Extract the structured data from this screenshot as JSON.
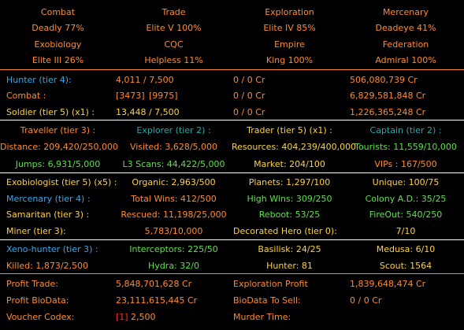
{
  "colors": {
    "orange": "#ff8a2e",
    "blue": "#3aa6e8",
    "cyan": "#2aa7a7",
    "yellow": "#ffd23f",
    "green": "#5ee04a",
    "red": "#ff2a2a",
    "sep": "#ff8a2e"
  },
  "ranks": {
    "combat_title": "Combat",
    "combat_value": "Deadly  77%",
    "trade_title": "Trade",
    "trade_value": "Elite V  100%",
    "exploration_title": "Exploration",
    "exploration_value": "Elite IV  85%",
    "mercenary_title": "Mercenary",
    "mercenary_value": "Deadeye  41%",
    "exobiology_title": "Exobiology",
    "exobiology_value": "Elite III  26%",
    "cqc_title": "CQC",
    "cqc_value": "Helpless  11%",
    "empire_title": "Empire",
    "empire_value": "King  100%",
    "federation_title": "Federation",
    "federation_value": "Admiral  100%"
  },
  "hunter": {
    "label": "Hunter (tier 4):",
    "progress": "4,011 / 7,500",
    "cr": "0 / 0 Cr",
    "total": "506,080,739 Cr"
  },
  "combat": {
    "label": "Combat :",
    "b1": "[3473]",
    "b2": "[9975]",
    "cr": "0 / 0 Cr",
    "total": "6,829,581,848 Cr"
  },
  "soldier": {
    "label": "Soldier (tier 5) (x1) :",
    "progress": "13,448 / 7,500",
    "cr": "0 / 0 Cr",
    "total": "1,226,365,248 Cr"
  },
  "traveller": {
    "header": "Traveller (tier 3) :",
    "distance": "Distance: 209,420/250,000",
    "jumps": "Jumps: 6,931/5,000"
  },
  "explorer": {
    "header": "Explorer (tier 2) :",
    "visited": "Visited: 3,628/5,000",
    "l3": "L3 Scans: 44,422/5,000"
  },
  "trader": {
    "header": "Trader (tier 5) (x1) :",
    "resources": "Resources: 404,239/400,000",
    "market": "Market: 204/100"
  },
  "captain": {
    "header": "Captain (tier 2) :",
    "tourists": "Tourists: 11,559/10,000",
    "vips": "VIPs : 167/500"
  },
  "exobiologist": {
    "label": "Exobiologist (tier 5) (x5) :",
    "organic": "Organic: 2,963/500",
    "planets": "Planets: 1,297/100",
    "unique": "Unique: 100/75"
  },
  "mercenary": {
    "label": "Mercenary (tier 4) :",
    "total_wins": "Total Wins: 412/500",
    "high_wins": "High Wins: 309/250",
    "colony": "Colony A.D.: 35/25"
  },
  "samaritan": {
    "label": "Samaritan (tier 3) :",
    "rescued": "Rescued: 11,198/25,000",
    "reboot": "Reboot: 53/25",
    "fireout": "FireOut: 540/250"
  },
  "miner": {
    "label": "Miner (tier 3):",
    "progress": "5,783/10,000",
    "hero": "Decorated Hero (tier 0):",
    "hero_progress": "7/10"
  },
  "xeno": {
    "label": "Xeno-hunter (tier 3) :",
    "interceptors": "Interceptors: 225/50",
    "basilisk": "Basilisk: 24/25",
    "medusa": "Medusa: 6/10",
    "killed": "Killed: 1,873/2,500",
    "hydra": "Hydra: 32/0",
    "hunter": "Hunter: 81",
    "scout": "Scout: 1564"
  },
  "profit": {
    "trade_label": "Profit Trade:",
    "trade_value": "5,848,701,628 Cr",
    "exploration_label": "Exploration Profit",
    "exploration_value": "1,839,648,474 Cr",
    "biodata_label": "Profit BioData:",
    "biodata_value": "23,111,615,445 Cr",
    "sell_label": "BioData To Sell:",
    "sell_value": "0 / 0 Cr",
    "voucher_label": "Voucher Codex:",
    "voucher_count": "[1]",
    "voucher_value": "2,500",
    "murder_label": "Murder Time:"
  }
}
